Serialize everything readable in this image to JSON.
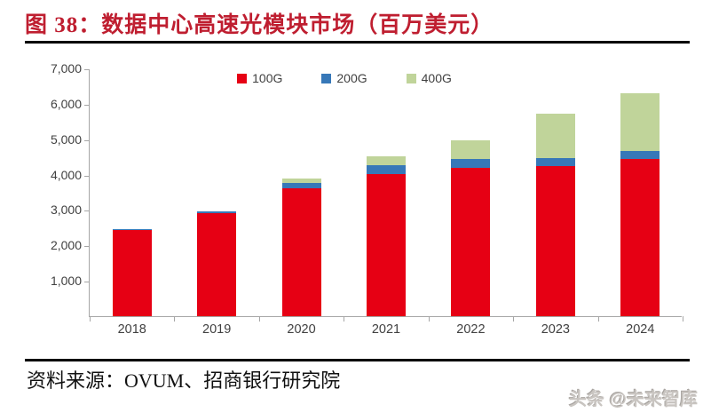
{
  "title": "图 38：数据中心高速光模块市场（百万美元）",
  "source": "资料来源：OVUM、招商银行研究院",
  "watermark": "头条 @未来智库",
  "colors": {
    "title_red": "#bf1e30",
    "axis_gray": "#a6a6a6",
    "text_gray": "#404040",
    "series_100g": "#e60014",
    "series_200g": "#3778b8",
    "series_400g": "#c0d49a"
  },
  "chart_data": {
    "type": "bar",
    "stacked": true,
    "title": "数据中心高速光模块市场（百万美元）",
    "categories": [
      "2018",
      "2019",
      "2020",
      "2021",
      "2022",
      "2023",
      "2024"
    ],
    "series": [
      {
        "name": "100G",
        "color": "#e60014",
        "values": [
          2440,
          2920,
          3610,
          4010,
          4180,
          4230,
          4440
        ]
      },
      {
        "name": "200G",
        "color": "#3778b8",
        "values": [
          25,
          30,
          150,
          250,
          250,
          230,
          230
        ]
      },
      {
        "name": "400G",
        "color": "#c0d49a",
        "values": [
          0,
          20,
          120,
          250,
          530,
          1270,
          1620
        ]
      }
    ],
    "totals": [
      2465,
      2970,
      3880,
      4510,
      4960,
      5730,
      6290
    ],
    "xlabel": "",
    "ylabel": "",
    "ylim": [
      0,
      7000
    ],
    "yticks": [
      {
        "value": 7000,
        "label": "7,000"
      },
      {
        "value": 6000,
        "label": "6,000"
      },
      {
        "value": 5000,
        "label": "5,000"
      },
      {
        "value": 4000,
        "label": "4,000"
      },
      {
        "value": 3000,
        "label": "3,000"
      },
      {
        "value": 2000,
        "label": "2,000"
      },
      {
        "value": 1000,
        "label": "1,000"
      }
    ],
    "grid": false,
    "legend_position": "top"
  }
}
